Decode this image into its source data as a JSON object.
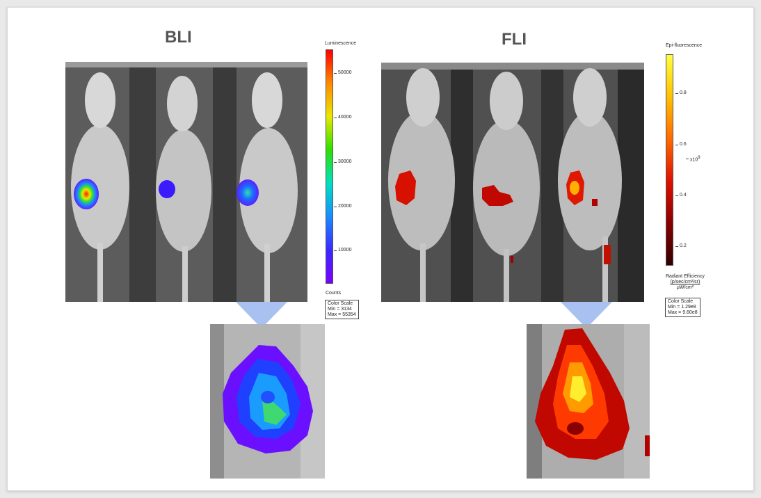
{
  "bli": {
    "heading": "BLI",
    "scale_title": "Luminescence",
    "ticks": [
      "50000",
      "40000",
      "30000",
      "20000",
      "10000"
    ],
    "unit": "Counts",
    "box": {
      "title": "Color Scale",
      "min": "Min = 3134",
      "max": "Max = 55354"
    },
    "gradient_colors": [
      "#ff0000",
      "#ff8a00",
      "#e8e800",
      "#2fe000",
      "#00e0c0",
      "#1a8cff",
      "#3a2aff",
      "#7a00ff"
    ]
  },
  "fli": {
    "heading": "FLI",
    "scale_title": "Epi-fluorescence",
    "ticks": [
      "0.8",
      "0.6",
      "0.4",
      "0.2"
    ],
    "exponent": "x10",
    "exponent_sup": "9",
    "unit_line1": "Radiant Efficiency",
    "unit_line2": "(p/sec/cm²/sr)",
    "unit_line3": "μW/cm²",
    "box": {
      "title": "Color Scale",
      "min": "Min = 1.29e8",
      "max": "Max = 9.60e8"
    },
    "gradient_colors": [
      "#ffff40",
      "#ffc000",
      "#ff6a00",
      "#e01000",
      "#8a0000",
      "#300000"
    ]
  },
  "colors": {
    "pointer": "#a8c1f0",
    "heading": "#555555"
  }
}
